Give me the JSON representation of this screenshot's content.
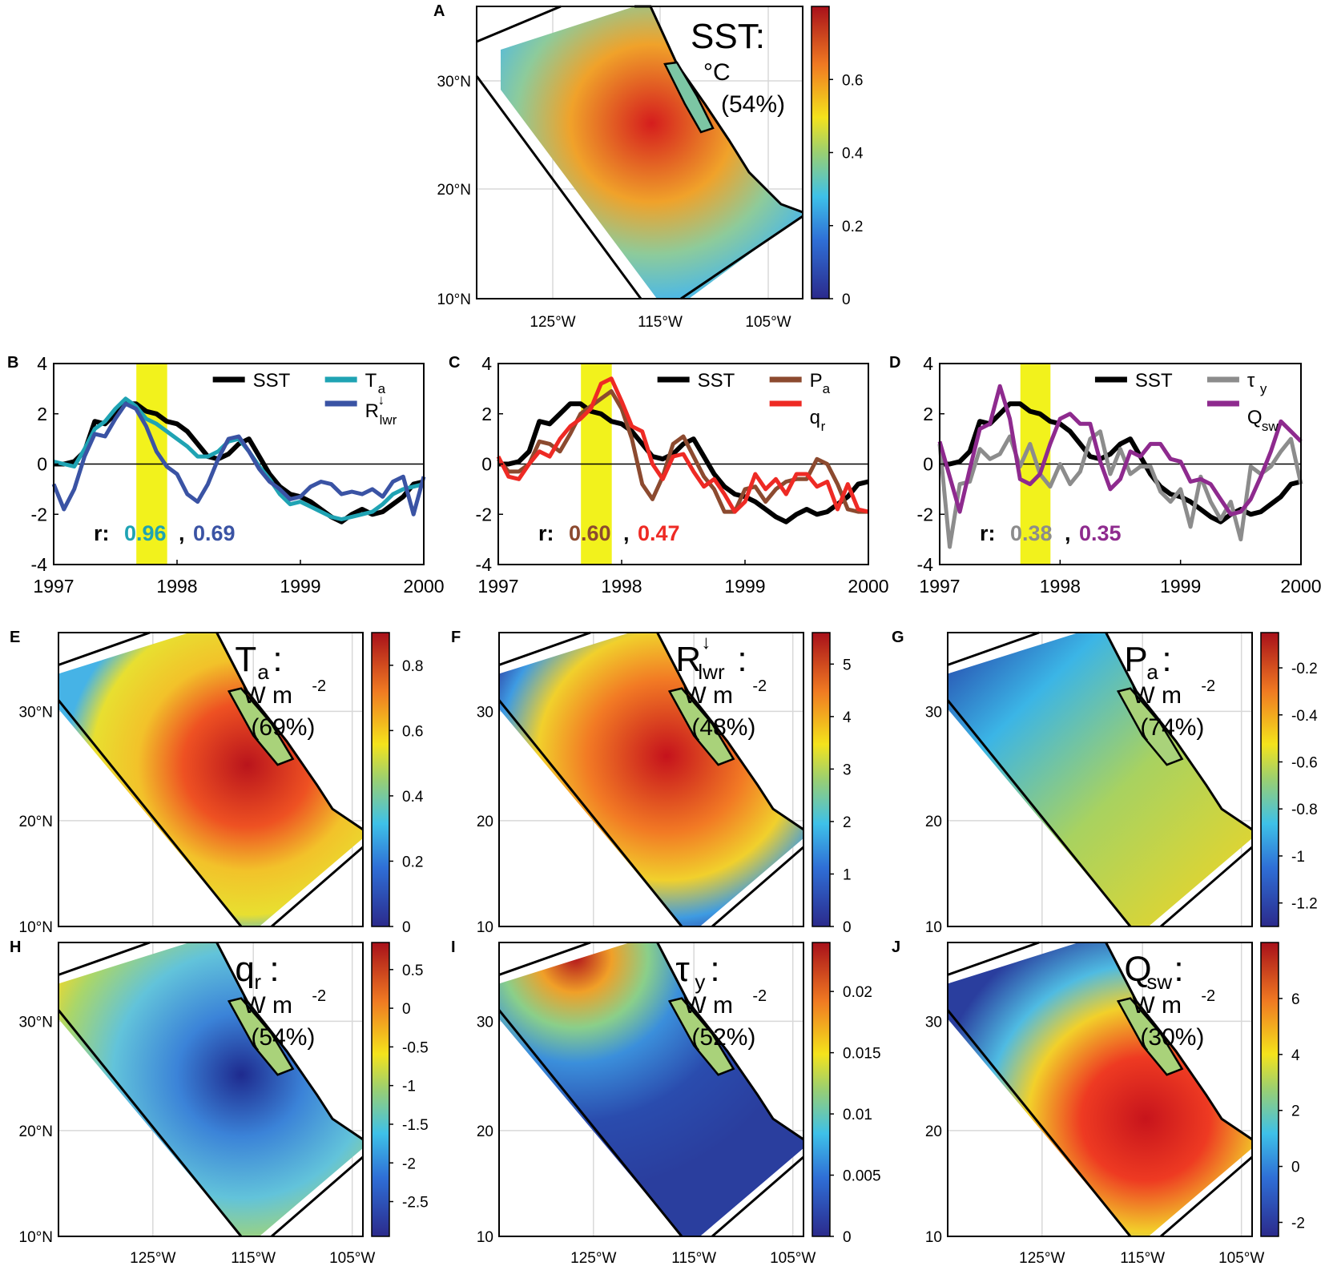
{
  "colors": {
    "SST": "#000000",
    "T_a": "#1FA3B3",
    "R_lwr": "#3A53A4",
    "P_a": "#8C4A2F",
    "q_r": "#EE2A24",
    "tau_y": "#8C8C8C",
    "Q_sw": "#8E2A8E",
    "highlight": "#F2F21C"
  },
  "chart_data": [
    {
      "panel": "A",
      "type": "heatmap",
      "title": "SST:",
      "units": "°C",
      "percent": "(54%)",
      "lat_ticks": [
        "10°N",
        "20°N",
        "30°N"
      ],
      "lon_ticks": [
        "125°W",
        "115°W",
        "105°W"
      ],
      "colorbar": {
        "ticks": [
          "0",
          "0.2",
          "0.4",
          "0.6"
        ],
        "range": [
          0,
          0.8
        ]
      }
    },
    {
      "panel": "B",
      "type": "line",
      "xlim": [
        1997,
        2000
      ],
      "ylim": [
        -4,
        4
      ],
      "xticks": [
        "1997",
        "1998",
        "1999",
        "2000"
      ],
      "yticks": [
        "4",
        "2",
        "0",
        "-2",
        "-4"
      ],
      "highlight": [
        1997.67,
        1997.92
      ],
      "legend": {
        "l1": "SST",
        "l2": "T",
        "l2sub": "a",
        "l3": "R",
        "l3sup": "↓",
        "l3sub": "lwr"
      },
      "r_prefix": "r:",
      "r_values": [
        "0.96",
        "0.69"
      ],
      "x": [
        1997.0,
        1997.083,
        1997.167,
        1997.25,
        1997.333,
        1997.417,
        1997.5,
        1997.583,
        1997.667,
        1997.75,
        1997.833,
        1997.917,
        1998.0,
        1998.083,
        1998.167,
        1998.25,
        1998.333,
        1998.417,
        1998.5,
        1998.583,
        1998.667,
        1998.75,
        1998.833,
        1998.917,
        1999.0,
        1999.083,
        1999.167,
        1999.25,
        1999.333,
        1999.417,
        1999.5,
        1999.583,
        1999.667,
        1999.75,
        1999.833,
        1999.917,
        2000.0
      ],
      "series": [
        {
          "name": "SST",
          "values": [
            0.0,
            0.0,
            0.1,
            0.5,
            1.7,
            1.6,
            2.0,
            2.4,
            2.4,
            2.1,
            2.0,
            1.7,
            1.6,
            1.3,
            0.8,
            0.3,
            0.2,
            0.4,
            0.8,
            1.0,
            0.3,
            -0.4,
            -0.9,
            -1.2,
            -1.3,
            -1.5,
            -1.8,
            -2.1,
            -2.3,
            -2.0,
            -1.8,
            -2.0,
            -1.9,
            -1.6,
            -1.3,
            -0.8,
            -0.7
          ]
        },
        {
          "name": "T_a",
          "values": [
            0.1,
            0.0,
            -0.1,
            0.6,
            1.4,
            1.7,
            2.2,
            2.6,
            2.3,
            1.8,
            1.6,
            1.3,
            1.0,
            0.7,
            0.3,
            0.3,
            0.5,
            0.9,
            1.0,
            0.5,
            -0.1,
            -0.6,
            -1.2,
            -1.6,
            -1.5,
            -1.7,
            -1.9,
            -2.1,
            -2.2,
            -2.1,
            -2.0,
            -1.9,
            -1.6,
            -1.2,
            -1.0,
            -0.9,
            -0.8
          ]
        },
        {
          "name": "R_lwr",
          "values": [
            -0.8,
            -1.8,
            -1.0,
            0.3,
            1.2,
            1.1,
            1.8,
            2.4,
            2.2,
            1.5,
            0.5,
            -0.1,
            -0.4,
            -1.2,
            -1.5,
            -0.8,
            0.2,
            1.0,
            1.1,
            0.5,
            -0.2,
            -0.7,
            -1.0,
            -1.4,
            -1.3,
            -0.9,
            -0.7,
            -0.8,
            -1.2,
            -1.1,
            -1.2,
            -1.0,
            -1.3,
            -0.7,
            -0.5,
            -2.0,
            -0.5
          ]
        }
      ]
    },
    {
      "panel": "C",
      "type": "line",
      "xlim": [
        1997,
        2000
      ],
      "ylim": [
        -4,
        4
      ],
      "xticks": [
        "1997",
        "1998",
        "1999",
        "2000"
      ],
      "yticks": [
        "4",
        "2",
        "0",
        "-2",
        "-4"
      ],
      "highlight": [
        1997.67,
        1997.92
      ],
      "legend": {
        "l1": "SST",
        "l2": "P",
        "l2sub": "a",
        "l3": "q",
        "l3sup": "",
        "l3sub": "r"
      },
      "r_prefix": "r:",
      "r_values": [
        "0.60",
        "0.47"
      ],
      "x": [
        1997.0,
        1997.083,
        1997.167,
        1997.25,
        1997.333,
        1997.417,
        1997.5,
        1997.583,
        1997.667,
        1997.75,
        1997.833,
        1997.917,
        1998.0,
        1998.083,
        1998.167,
        1998.25,
        1998.333,
        1998.417,
        1998.5,
        1998.583,
        1998.667,
        1998.75,
        1998.833,
        1998.917,
        1999.0,
        1999.083,
        1999.167,
        1999.25,
        1999.333,
        1999.417,
        1999.5,
        1999.583,
        1999.667,
        1999.75,
        1999.833,
        1999.917,
        2000.0
      ],
      "series": [
        {
          "name": "SST",
          "values": [
            0.0,
            0.0,
            0.1,
            0.5,
            1.7,
            1.6,
            2.0,
            2.4,
            2.4,
            2.1,
            2.0,
            1.7,
            1.6,
            1.3,
            0.8,
            0.3,
            0.2,
            0.4,
            0.8,
            1.0,
            0.3,
            -0.4,
            -0.9,
            -1.2,
            -1.3,
            -1.5,
            -1.8,
            -2.1,
            -2.3,
            -2.0,
            -1.8,
            -2.0,
            -1.9,
            -1.6,
            -1.3,
            -0.8,
            -0.7
          ]
        },
        {
          "name": "P_a",
          "values": [
            0.2,
            -0.3,
            -0.3,
            0.0,
            0.9,
            0.8,
            0.5,
            1.2,
            2.0,
            2.3,
            2.6,
            2.9,
            2.2,
            1.0,
            -0.8,
            -1.4,
            -0.5,
            0.8,
            1.1,
            0.3,
            -0.5,
            -1.0,
            -1.9,
            -1.9,
            -1.0,
            -0.9,
            -1.5,
            -1.0,
            -0.7,
            -0.6,
            -0.6,
            0.2,
            0.0,
            -0.8,
            -1.8,
            -1.9,
            -1.9
          ]
        },
        {
          "name": "q_r",
          "values": [
            0.3,
            -0.5,
            -0.6,
            0.0,
            0.5,
            0.3,
            1.0,
            1.5,
            1.8,
            2.2,
            3.2,
            3.4,
            2.5,
            1.5,
            1.3,
            0.0,
            -0.6,
            0.3,
            0.4,
            -0.3,
            -0.9,
            -0.6,
            -1.2,
            -1.9,
            -1.5,
            -0.4,
            -1.0,
            -0.6,
            -1.2,
            -0.4,
            -0.4,
            -0.9,
            -0.7,
            -1.8,
            -0.8,
            -1.8,
            -1.9
          ]
        }
      ]
    },
    {
      "panel": "D",
      "type": "line",
      "xlim": [
        1997,
        2000
      ],
      "ylim": [
        -4,
        4
      ],
      "xticks": [
        "1997",
        "1998",
        "1999",
        "2000"
      ],
      "yticks": [
        "4",
        "2",
        "0",
        "-2",
        "-4"
      ],
      "highlight": [
        1997.67,
        1997.92
      ],
      "legend": {
        "l1": "SST",
        "l2": "τ",
        "l2sub": "y",
        "l3": "Q",
        "l3sup": "",
        "l3sub": "sw"
      },
      "r_prefix": "r:",
      "r_values": [
        "0.38",
        "0.35"
      ],
      "x": [
        1997.0,
        1997.083,
        1997.167,
        1997.25,
        1997.333,
        1997.417,
        1997.5,
        1997.583,
        1997.667,
        1997.75,
        1997.833,
        1997.917,
        1998.0,
        1998.083,
        1998.167,
        1998.25,
        1998.333,
        1998.417,
        1998.5,
        1998.583,
        1998.667,
        1998.75,
        1998.833,
        1998.917,
        1999.0,
        1999.083,
        1999.167,
        1999.25,
        1999.333,
        1999.417,
        1999.5,
        1999.583,
        1999.667,
        1999.75,
        1999.833,
        1999.917,
        2000.0
      ],
      "series": [
        {
          "name": "SST",
          "values": [
            0.0,
            0.0,
            0.1,
            0.5,
            1.7,
            1.6,
            2.0,
            2.4,
            2.4,
            2.1,
            2.0,
            1.7,
            1.6,
            1.3,
            0.8,
            0.3,
            0.2,
            0.4,
            0.8,
            1.0,
            0.3,
            -0.4,
            -0.9,
            -1.2,
            -1.3,
            -1.5,
            -1.8,
            -2.1,
            -2.3,
            -2.0,
            -1.8,
            -2.0,
            -1.9,
            -1.6,
            -1.3,
            -0.8,
            -0.7
          ]
        },
        {
          "name": "tau_y",
          "values": [
            0.8,
            -3.3,
            -0.8,
            -0.7,
            0.6,
            0.2,
            0.4,
            1.1,
            -0.1,
            0.8,
            -0.4,
            -0.9,
            0.0,
            -0.8,
            -0.3,
            1.0,
            1.3,
            -0.4,
            0.6,
            -0.4,
            -0.1,
            -0.1,
            -1.1,
            -1.5,
            -1.0,
            -2.5,
            -0.5,
            -1.5,
            -2.2,
            -1.5,
            -3.0,
            -0.1,
            -0.4,
            -0.1,
            0.5,
            1.0,
            -0.8
          ]
        },
        {
          "name": "Q_sw",
          "values": [
            0.9,
            -0.5,
            -1.9,
            -0.2,
            1.4,
            1.6,
            3.1,
            1.8,
            -0.6,
            -0.8,
            -0.4,
            0.8,
            1.8,
            2.0,
            1.6,
            1.6,
            0.1,
            -1.0,
            -0.6,
            0.5,
            0.3,
            0.8,
            0.8,
            0.2,
            0.1,
            -0.7,
            -0.6,
            -0.8,
            -1.4,
            -2.0,
            -1.9,
            -1.4,
            -0.5,
            0.5,
            1.7,
            1.3,
            0.9
          ]
        }
      ]
    },
    {
      "panel": "E",
      "type": "heatmap",
      "title": "T",
      "title_sub": "a",
      "title_sup": "",
      "units": "W m",
      "units_exp": "-2",
      "percent": "(69%)",
      "lat_ticks": [
        "10°N",
        "20°N",
        "30°N"
      ],
      "lon_ticks": [],
      "colorbar": {
        "ticks": [
          "0",
          "0.2",
          "0.4",
          "0.6",
          "0.8"
        ],
        "range": [
          0,
          0.9
        ]
      }
    },
    {
      "panel": "F",
      "type": "heatmap",
      "title": "R",
      "title_sub": "lwr",
      "title_sup": "↓",
      "units": "W m",
      "units_exp": "-2",
      "percent": "(48%)",
      "lat_ticks": [
        "10",
        "20",
        "30"
      ],
      "lon_ticks": [],
      "colorbar": {
        "ticks": [
          "0",
          "1",
          "2",
          "3",
          "4",
          "5"
        ],
        "range": [
          0,
          5.6
        ]
      }
    },
    {
      "panel": "G",
      "type": "heatmap",
      "title": "P",
      "title_sub": "a",
      "title_sup": "",
      "units": "W m",
      "units_exp": "-2",
      "percent": "(74%)",
      "lat_ticks": [
        "10",
        "20",
        "30"
      ],
      "lon_ticks": [],
      "colorbar": {
        "ticks": [
          "-1.2",
          "-1",
          "-0.8",
          "-0.6",
          "-0.4",
          "-0.2"
        ],
        "range": [
          -1.3,
          -0.05
        ]
      }
    },
    {
      "panel": "H",
      "type": "heatmap",
      "title": "q",
      "title_sub": "r",
      "title_sup": "",
      "units": "W m",
      "units_exp": "-2",
      "percent": "(54%)",
      "lat_ticks": [
        "10°N",
        "20°N",
        "30°N"
      ],
      "lon_ticks": [
        "125°W",
        "115°W",
        "105°W"
      ],
      "colorbar": {
        "ticks": [
          "-2.5",
          "-2",
          "-1.5",
          "-1",
          "-0.5",
          "0",
          "0.5"
        ],
        "range": [
          -2.95,
          0.85
        ]
      }
    },
    {
      "panel": "I",
      "type": "heatmap",
      "title": "τ",
      "title_sub": "y",
      "title_sup": "",
      "units": "W m",
      "units_exp": "-2",
      "percent": "(52%)",
      "lat_ticks": [
        "10",
        "20",
        "30"
      ],
      "lon_ticks": [
        "125°W",
        "115°W",
        "105°W"
      ],
      "colorbar": {
        "ticks": [
          "0",
          "0.005",
          "0.01",
          "0.015",
          "0.02"
        ],
        "range": [
          0,
          0.024
        ]
      }
    },
    {
      "panel": "J",
      "type": "heatmap",
      "title": "Q",
      "title_sub": "sw",
      "title_sup": "",
      "units": "W m",
      "units_exp": "-2",
      "percent": "(30%)",
      "lat_ticks": [
        "10",
        "20",
        "30"
      ],
      "lon_ticks": [
        "125°W",
        "115°W",
        "105°W"
      ],
      "colorbar": {
        "ticks": [
          "-2",
          "0",
          "2",
          "4",
          "6"
        ],
        "range": [
          -2.5,
          8
        ]
      }
    }
  ]
}
